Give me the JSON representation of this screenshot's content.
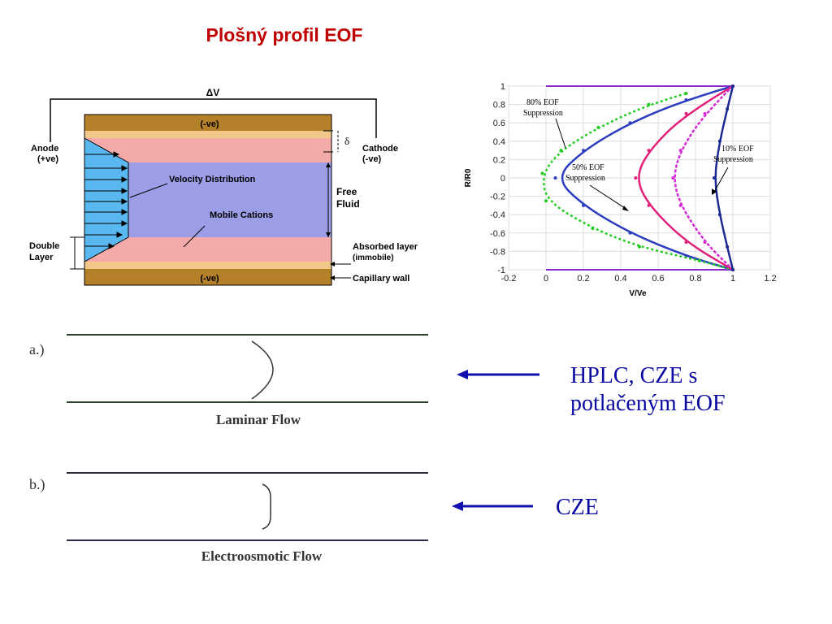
{
  "title": "Plošný profil EOF",
  "capillary": {
    "delta_v": "ΔV",
    "wall_top": "(-ve)",
    "wall_bottom": "(-ve)",
    "delta": "δ",
    "anode": [
      "Anode",
      "(+ve)"
    ],
    "cathode": [
      "Cathode",
      "(-ve)"
    ],
    "velocity": "Velocity Distribution",
    "cations": "Mobile Cations",
    "free_fluid": [
      "Free",
      "Fluid"
    ],
    "double_layer": [
      "Double",
      "Layer"
    ],
    "absorbed": [
      "Absorbed layer",
      "(immobile)"
    ],
    "capillary_wall": "Capillary wall",
    "colors": {
      "wall": "#b5802a",
      "pink": "#f4aaa8",
      "blue": "#9b9ee6",
      "flow": "#5ab8f0"
    }
  },
  "chart_data": {
    "type": "line",
    "xlabel": "V/Ve",
    "ylabel": "R/R0",
    "xlim": [
      -0.2,
      1.2
    ],
    "ylim": [
      -1,
      1
    ],
    "xticks": [
      "-0.2",
      "0",
      "0.2",
      "0.4",
      "0.6",
      "0.8",
      "1",
      "1.2"
    ],
    "yticks": [
      "1",
      "0.8",
      "0.6",
      "0.4",
      "0.2",
      "0",
      "-0.2",
      "-0.4",
      "-0.6",
      "-0.8",
      "-1"
    ],
    "grid": true,
    "annotations": [
      {
        "text": [
          "80% EOF",
          "Suppression"
        ]
      },
      {
        "text": [
          "50% EOF",
          "Suppression"
        ]
      },
      {
        "text": [
          "10% EOF",
          "Suppression"
        ]
      }
    ],
    "series": [
      {
        "color": "#2c3ec0",
        "points": [
          [
            1,
            1
          ],
          [
            0.75,
            0.85
          ],
          [
            0.45,
            0.6
          ],
          [
            0.2,
            0.3
          ],
          [
            0.05,
            0
          ],
          [
            0.2,
            -0.3
          ],
          [
            0.45,
            -0.6
          ],
          [
            0.75,
            -0.85
          ],
          [
            1,
            -1
          ]
        ]
      },
      {
        "color": "#22cc22",
        "points": [
          [
            0.75,
            0.92
          ],
          [
            0.55,
            0.8
          ],
          [
            0.28,
            0.55
          ],
          [
            0.08,
            0.3
          ],
          [
            -0.02,
            0.05
          ],
          [
            0,
            -0.25
          ],
          [
            0.25,
            -0.55
          ],
          [
            0.5,
            -0.75
          ],
          [
            0.82,
            -0.9
          ],
          [
            1,
            -1
          ]
        ]
      },
      {
        "color": "#e0207a",
        "points": [
          [
            1,
            1
          ],
          [
            0.75,
            0.7
          ],
          [
            0.55,
            0.3
          ],
          [
            0.48,
            0
          ],
          [
            0.55,
            -0.3
          ],
          [
            0.75,
            -0.7
          ],
          [
            1,
            -1
          ]
        ]
      },
      {
        "color": "#d42cd4",
        "points": [
          [
            1,
            1
          ],
          [
            0.85,
            0.7
          ],
          [
            0.72,
            0.3
          ],
          [
            0.68,
            0
          ],
          [
            0.72,
            -0.3
          ],
          [
            0.85,
            -0.7
          ],
          [
            1,
            -1
          ]
        ]
      },
      {
        "color": "#1a2a90",
        "points": [
          [
            1,
            1
          ],
          [
            0.97,
            0.75
          ],
          [
            0.93,
            0.4
          ],
          [
            0.9,
            0
          ],
          [
            0.93,
            -0.4
          ],
          [
            0.97,
            -0.75
          ],
          [
            1,
            -1
          ]
        ]
      }
    ]
  },
  "flows": [
    {
      "label": "a.)",
      "caption": "Laminar Flow"
    },
    {
      "label": "b.)",
      "caption": "Electroosmotic Flow"
    }
  ],
  "notes": {
    "laminar": [
      "HPLC, CZE s",
      "potlačeným EOF"
    ],
    "eof": "CZE",
    "arrow_color": "#1010b0"
  }
}
